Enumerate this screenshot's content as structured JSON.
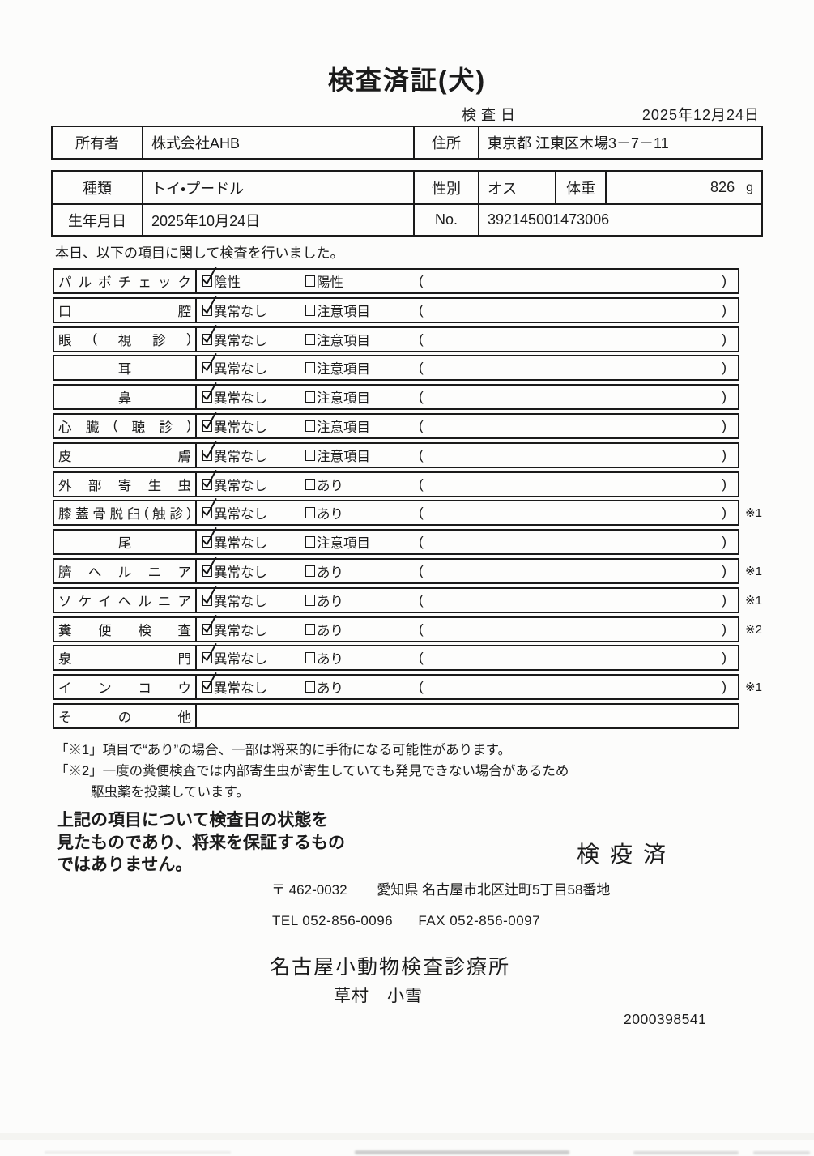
{
  "title": "検査済証(犬)",
  "inspection_date": {
    "label": "検査日",
    "value": "2025年12月24日"
  },
  "owner": {
    "owner_label": "所有者",
    "owner_value": "株式会社AHB",
    "address_label": "住所",
    "address_value": "東京都 江東区木場3－7－11"
  },
  "animal": {
    "breed_label": "種類",
    "breed_value": "トイ・プードル",
    "sex_label": "性別",
    "sex_value": "オス",
    "weight_label": "体重",
    "weight_value": "826",
    "weight_unit": "g",
    "birth_label": "生年月日",
    "birth_value": "2025年10月24日",
    "no_label": "No.",
    "no_value": "392145001473006"
  },
  "intro": "本日、以下の項目に関して検査を行いました。",
  "checklist": {
    "paren_open": "(",
    "paren_close": ")",
    "rows": [
      {
        "label": "パルボチェック",
        "option1": "陰性",
        "option2": "陽性",
        "checked": 1,
        "note": ""
      },
      {
        "label": "口腔",
        "option1": "異常なし",
        "option2": "注意項目",
        "checked": 1,
        "note": ""
      },
      {
        "label": "眼(視診)",
        "option1": "異常なし",
        "option2": "注意項目",
        "checked": 1,
        "note": ""
      },
      {
        "label": "耳",
        "option1": "異常なし",
        "option2": "注意項目",
        "checked": 1,
        "note": ""
      },
      {
        "label": "鼻",
        "option1": "異常なし",
        "option2": "注意項目",
        "checked": 1,
        "note": ""
      },
      {
        "label": "心臓(聴診)",
        "option1": "異常なし",
        "option2": "注意項目",
        "checked": 1,
        "note": ""
      },
      {
        "label": "皮膚",
        "option1": "異常なし",
        "option2": "注意項目",
        "checked": 1,
        "note": ""
      },
      {
        "label": "外部寄生虫",
        "option1": "異常なし",
        "option2": "あり",
        "checked": 1,
        "note": ""
      },
      {
        "label": "膝蓋骨脱臼(触診)",
        "option1": "異常なし",
        "option2": "あり",
        "checked": 1,
        "note": "※1"
      },
      {
        "label": "尾",
        "option1": "異常なし",
        "option2": "注意項目",
        "checked": 1,
        "note": ""
      },
      {
        "label": "臍ヘルニア",
        "option1": "異常なし",
        "option2": "あり",
        "checked": 1,
        "note": "※1"
      },
      {
        "label": "ソケイヘルニア",
        "option1": "異常なし",
        "option2": "あり",
        "checked": 1,
        "note": "※1"
      },
      {
        "label": "糞便検査",
        "option1": "異常なし",
        "option2": "あり",
        "checked": 1,
        "note": "※2"
      },
      {
        "label": "泉門",
        "option1": "異常なし",
        "option2": "あり",
        "checked": 1,
        "note": ""
      },
      {
        "label": "インコウ",
        "option1": "異常なし",
        "option2": "あり",
        "checked": 1,
        "note": "※1"
      },
      {
        "label": "その他",
        "option1": "",
        "option2": "",
        "checked": 0,
        "note": ""
      }
    ]
  },
  "footnotes": [
    "「※1」項目で“あり”の場合、一部は将来的に手術になる可能性があります。",
    "「※2」一度の糞便検査では内部寄生虫が寄生していても発見できない場合があるため",
    "駆虫薬を投薬しています。"
  ],
  "statement_lines": [
    "上記の項目について検査日の状態を",
    "見たものであり、将来を保証するもの",
    "ではありません。"
  ],
  "quarantine_stamp": "検疫済",
  "clinic": {
    "postal": "〒 462-0032",
    "address": "愛知県 名古屋市北区辻町5丁目58番地",
    "tel": "TEL 052-856-0096",
    "fax": "FAX 052-856-0097",
    "name": "名古屋小動物検査診療所",
    "veterinarian": "草村　小雪",
    "serial": "2000398541"
  }
}
